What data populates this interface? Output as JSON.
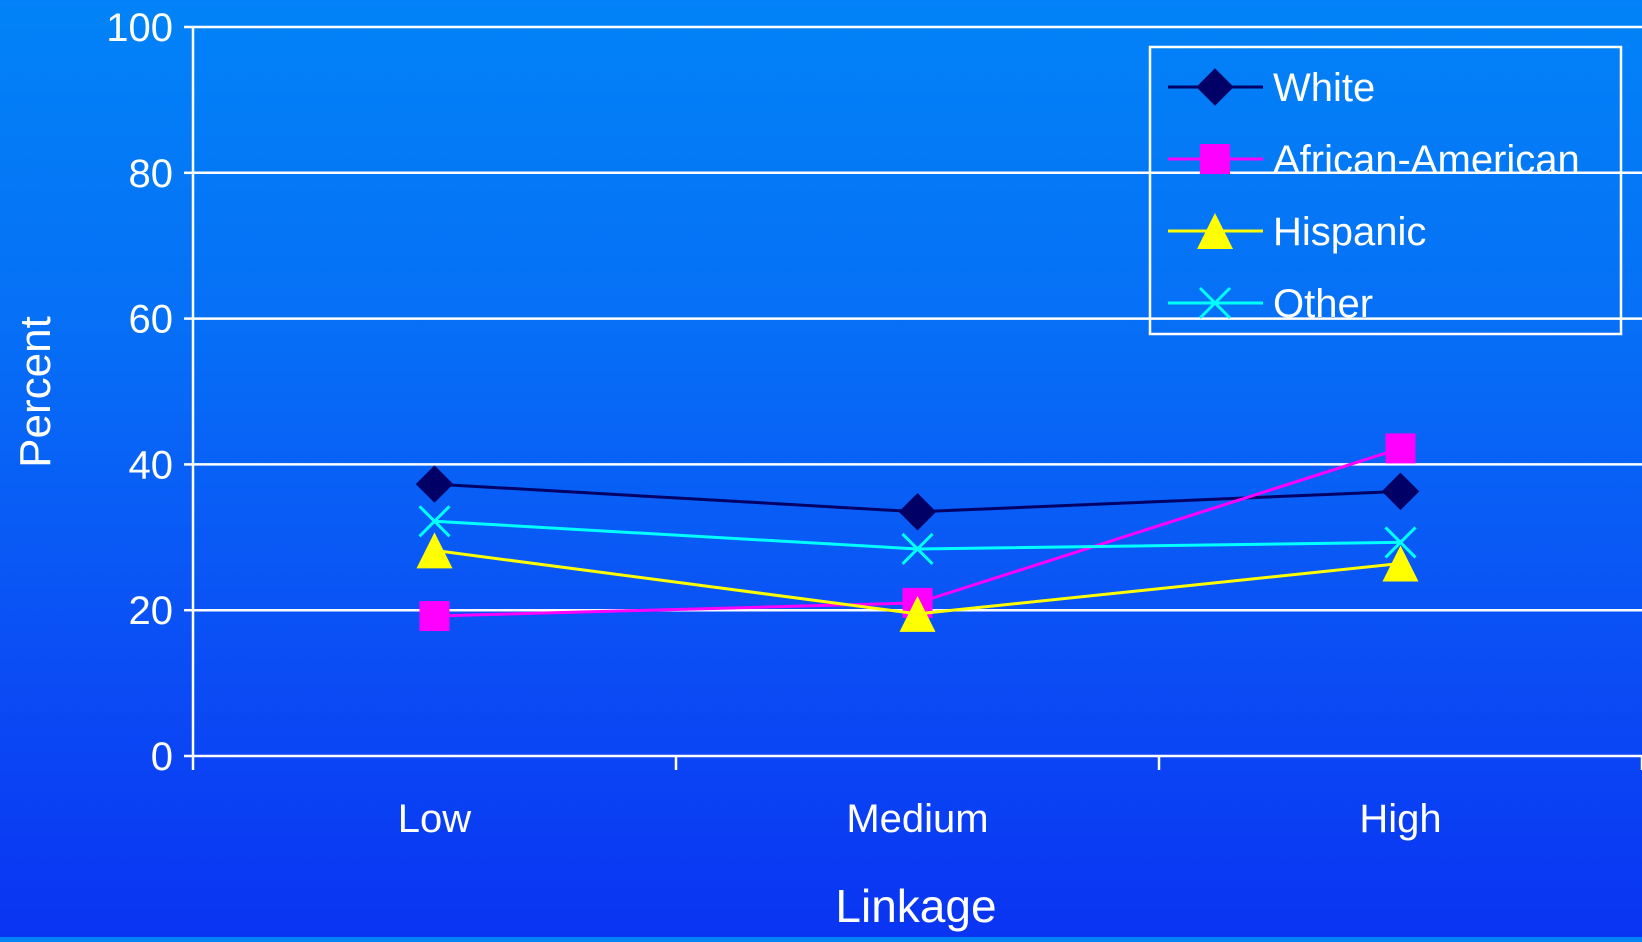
{
  "chart_data": {
    "type": "line",
    "title": "",
    "xlabel": "Linkage",
    "ylabel": "Percent",
    "categories": [
      "Low",
      "Medium",
      "High"
    ],
    "ylim": [
      0,
      100
    ],
    "yticks": [
      0,
      20,
      40,
      60,
      80,
      100
    ],
    "grid": true,
    "legend_position": "top-right",
    "series": [
      {
        "name": "White",
        "values": [
          37.3,
          33.5,
          36.3
        ],
        "color": "#000066",
        "marker": "diamond"
      },
      {
        "name": "African-American",
        "values": [
          19.2,
          21.0,
          42.2
        ],
        "color": "#ff00ff",
        "marker": "square"
      },
      {
        "name": "Hispanic",
        "values": [
          28.2,
          19.5,
          26.4
        ],
        "color": "#ffff00",
        "marker": "triangle"
      },
      {
        "name": "Other",
        "values": [
          32.2,
          28.4,
          29.3
        ],
        "color": "#00ffff",
        "marker": "x"
      }
    ]
  }
}
